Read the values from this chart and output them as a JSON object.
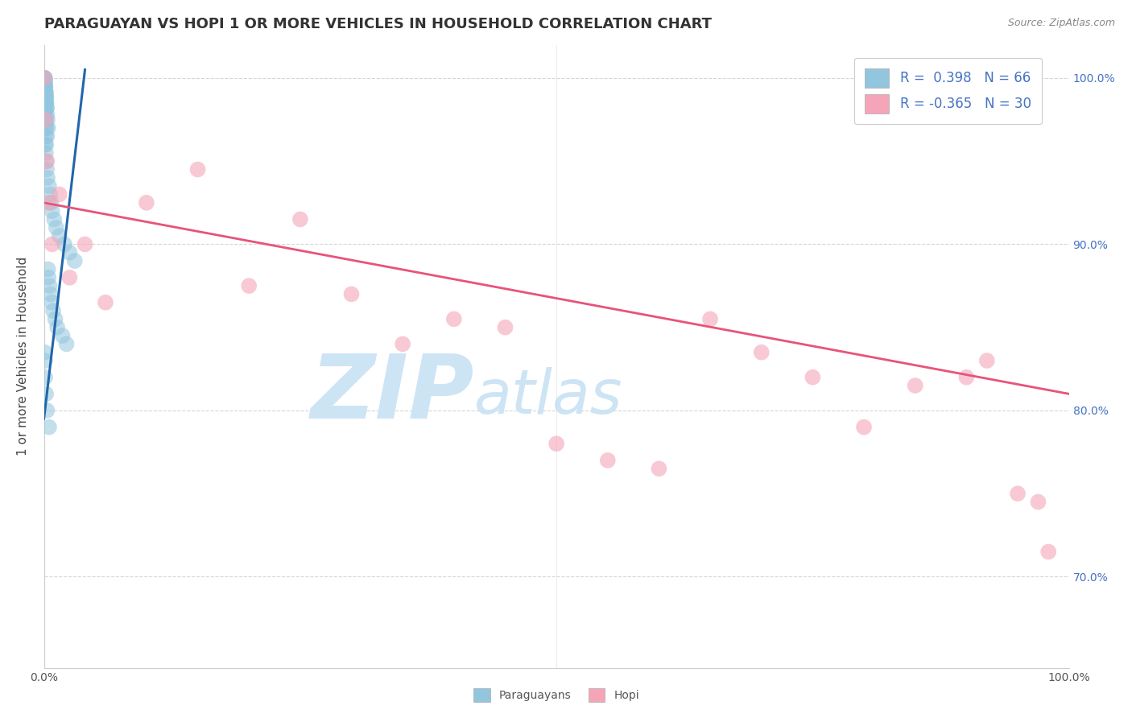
{
  "title": "PARAGUAYAN VS HOPI 1 OR MORE VEHICLES IN HOUSEHOLD CORRELATION CHART",
  "source": "Source: ZipAtlas.com",
  "ylabel": "1 or more Vehicles in Household",
  "x_min": 0.0,
  "x_max": 100.0,
  "y_min": 64.5,
  "y_max": 102.0,
  "y_ticks": [
    70.0,
    80.0,
    90.0,
    100.0
  ],
  "y_tick_labels": [
    "70.0%",
    "80.0%",
    "90.0%",
    "100.0%"
  ],
  "blue_color": "#92c5de",
  "pink_color": "#f4a6b8",
  "blue_line_color": "#2166ac",
  "pink_line_color": "#e8537a",
  "background_color": "#ffffff",
  "grid_color": "#cccccc",
  "watermark_zip": "ZIP",
  "watermark_atlas": "atlas",
  "watermark_color": "#cde4f5",
  "legend_r_blue": "0.398",
  "legend_n_blue": "66",
  "legend_r_pink": "-0.365",
  "legend_n_pink": "30",
  "paraguayan_x": [
    0.05,
    0.08,
    0.1,
    0.12,
    0.15,
    0.18,
    0.2,
    0.22,
    0.25,
    0.28,
    0.08,
    0.12,
    0.15,
    0.1,
    0.2,
    0.18,
    0.25,
    0.3,
    0.35,
    0.4,
    0.05,
    0.07,
    0.1,
    0.13,
    0.16,
    0.08,
    0.12,
    0.15,
    0.18,
    0.22,
    0.1,
    0.15,
    0.2,
    0.25,
    0.3,
    0.12,
    0.18,
    0.22,
    0.28,
    0.35,
    0.5,
    0.6,
    0.7,
    0.8,
    1.0,
    1.2,
    1.5,
    2.0,
    2.5,
    3.0,
    0.4,
    0.45,
    0.55,
    0.65,
    0.75,
    0.9,
    1.1,
    1.3,
    1.8,
    2.2,
    0.08,
    0.1,
    0.12,
    0.2,
    0.3,
    0.5
  ],
  "paraguayan_y": [
    100.0,
    100.0,
    100.0,
    99.8,
    99.5,
    99.2,
    99.0,
    98.8,
    98.5,
    98.2,
    99.8,
    99.5,
    99.2,
    99.0,
    98.8,
    98.5,
    98.2,
    97.8,
    97.5,
    97.0,
    100.0,
    99.8,
    99.5,
    99.0,
    98.5,
    98.0,
    97.5,
    97.0,
    96.5,
    96.0,
    98.5,
    98.0,
    97.5,
    97.0,
    96.5,
    96.0,
    95.5,
    95.0,
    94.5,
    94.0,
    93.5,
    93.0,
    92.5,
    92.0,
    91.5,
    91.0,
    90.5,
    90.0,
    89.5,
    89.0,
    88.5,
    88.0,
    87.5,
    87.0,
    86.5,
    86.0,
    85.5,
    85.0,
    84.5,
    84.0,
    83.5,
    83.0,
    82.0,
    81.0,
    80.0,
    79.0
  ],
  "hopi_x": [
    0.05,
    0.15,
    0.3,
    0.5,
    0.8,
    1.5,
    2.5,
    4.0,
    6.0,
    10.0,
    15.0,
    20.0,
    25.0,
    30.0,
    35.0,
    40.0,
    45.0,
    50.0,
    55.0,
    60.0,
    65.0,
    70.0,
    75.0,
    80.0,
    85.0,
    90.0,
    92.0,
    95.0,
    97.0,
    98.0
  ],
  "hopi_y": [
    100.0,
    97.5,
    95.0,
    92.5,
    90.0,
    93.0,
    88.0,
    90.0,
    86.5,
    92.5,
    94.5,
    87.5,
    91.5,
    87.0,
    84.0,
    85.5,
    85.0,
    78.0,
    77.0,
    76.5,
    85.5,
    83.5,
    82.0,
    79.0,
    81.5,
    82.0,
    83.0,
    75.0,
    74.5,
    71.5
  ],
  "hopi_line_x0": 0.0,
  "hopi_line_y0": 92.5,
  "hopi_line_x1": 100.0,
  "hopi_line_y1": 81.0,
  "blue_line_x0": 0.0,
  "blue_line_y0": 79.5,
  "blue_line_x1": 4.0,
  "blue_line_y1": 100.5
}
